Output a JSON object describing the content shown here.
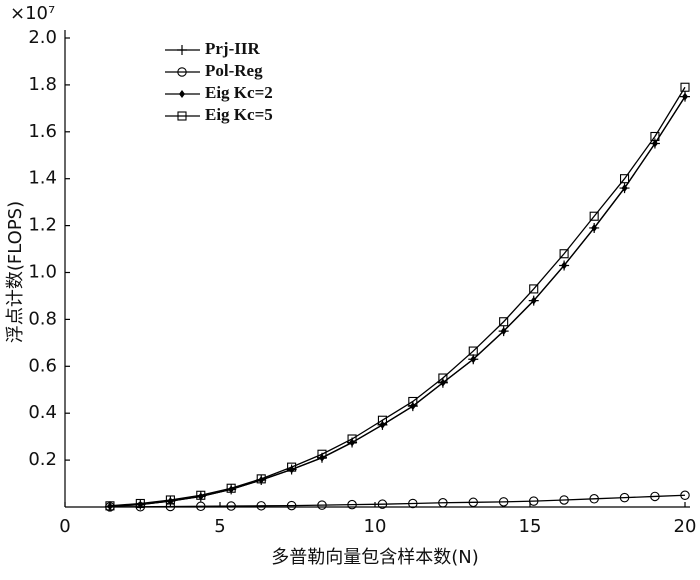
{
  "chart_data": {
    "type": "line",
    "y_multiplier": "×10⁷",
    "ylabel": "浮点计数(FLOPS)",
    "xlabel": "多普勒向量包含样本数(N)",
    "x": [
      1.45,
      2.43,
      3.4,
      4.38,
      5.36,
      6.33,
      7.31,
      8.29,
      9.26,
      10.24,
      11.22,
      12.19,
      13.17,
      14.15,
      15.12,
      16.1,
      17.07,
      18.05,
      19.03,
      20
    ],
    "series": [
      {
        "name": "Prj-IIR",
        "color": "#000000",
        "marker": "plus",
        "values": [
          0.003,
          0.01,
          0.025,
          0.045,
          0.075,
          0.115,
          0.16,
          0.21,
          0.275,
          0.35,
          0.43,
          0.53,
          0.63,
          0.75,
          0.88,
          1.03,
          1.19,
          1.36,
          1.55,
          1.75
        ]
      },
      {
        "name": "Pol-Reg",
        "color": "#000000",
        "marker": "circle",
        "values": [
          0.0005,
          0.001,
          0.002,
          0.003,
          0.004,
          0.005,
          0.006,
          0.008,
          0.01,
          0.012,
          0.015,
          0.018,
          0.02,
          0.022,
          0.025,
          0.03,
          0.035,
          0.04,
          0.045,
          0.05
        ]
      },
      {
        "name": "Eig Kc=2",
        "color": "#000000",
        "marker": "star",
        "values": [
          0.003,
          0.01,
          0.025,
          0.045,
          0.075,
          0.115,
          0.16,
          0.21,
          0.275,
          0.35,
          0.43,
          0.53,
          0.63,
          0.75,
          0.88,
          1.03,
          1.19,
          1.36,
          1.55,
          1.75
        ]
      },
      {
        "name": "Eig Kc=5",
        "color": "#000000",
        "marker": "square",
        "values": [
          0.005,
          0.015,
          0.03,
          0.05,
          0.08,
          0.12,
          0.17,
          0.225,
          0.29,
          0.37,
          0.45,
          0.55,
          0.665,
          0.79,
          0.93,
          1.08,
          1.24,
          1.4,
          1.58,
          1.79
        ]
      }
    ],
    "xlim": [
      0,
      20.5
    ],
    "xticks": [
      0,
      5,
      10,
      15,
      20
    ],
    "ylim": [
      0,
      2.0
    ],
    "yticks": [
      0.2,
      0.4,
      0.6,
      0.8,
      {
        "value": 1,
        "label": "1.0"
      },
      1.2,
      1.4,
      1.6,
      1.8,
      {
        "value": 2,
        "label": "2.0"
      }
    ]
  }
}
